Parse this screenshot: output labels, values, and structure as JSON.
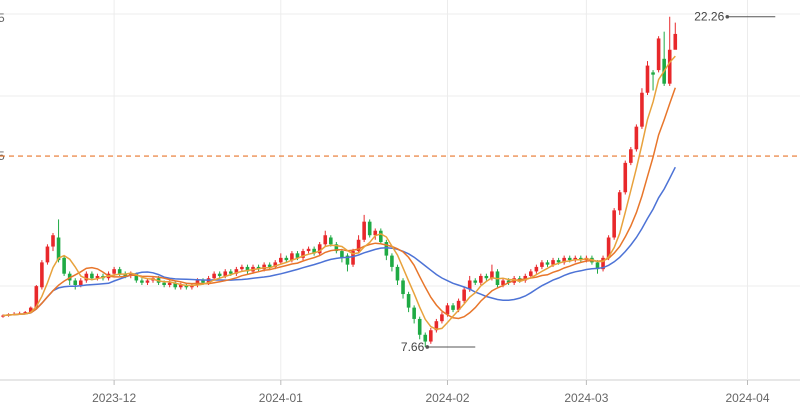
{
  "chart_data": {
    "type": "candlestick",
    "x_tick_labels": [
      "2023-12",
      "2024-01",
      "2024-02",
      "2024-03",
      "2024-04"
    ],
    "x_tick_index": [
      20,
      50,
      80,
      105,
      134
    ],
    "y_left_labels": [
      "5",
      "5"
    ],
    "y_left_label_values": [
      22.2,
      16.1
    ],
    "ylim": [
      6.2,
      23.0
    ],
    "grid": "vertical and horizontal",
    "reference_line": {
      "value": 16.1,
      "color": "#e8762b",
      "style": "dashed"
    },
    "annotations": [
      {
        "text": "22.26",
        "index": 139,
        "value": 22.26,
        "side": "left"
      },
      {
        "text": "7.66",
        "index": 85,
        "value": 7.66,
        "side": "left"
      }
    ],
    "colors": {
      "up": "#e8282b",
      "down": "#1faa44",
      "ma5": "#e8a23c",
      "ma10": "#e8762b",
      "ma20": "#4d73d6"
    },
    "candles": [
      [
        9.0,
        9.05,
        9.1,
        8.95
      ],
      [
        9.05,
        9.1,
        9.15,
        9.0
      ],
      [
        9.1,
        9.12,
        9.2,
        9.05
      ],
      [
        9.12,
        9.15,
        9.22,
        9.08
      ],
      [
        9.15,
        9.2,
        9.25,
        9.1
      ],
      [
        9.2,
        9.4,
        9.45,
        9.15
      ],
      [
        9.4,
        10.35,
        10.4,
        9.35
      ],
      [
        10.3,
        11.4,
        11.5,
        10.2
      ],
      [
        11.4,
        12.1,
        12.2,
        11.3
      ],
      [
        12.1,
        12.6,
        12.7,
        11.9
      ],
      [
        12.5,
        11.5,
        13.3,
        11.4
      ],
      [
        11.6,
        10.9,
        11.7,
        10.8
      ],
      [
        10.9,
        10.6,
        11.0,
        10.4
      ],
      [
        10.6,
        10.4,
        10.7,
        10.2
      ],
      [
        10.4,
        10.6,
        10.7,
        10.3
      ],
      [
        10.6,
        10.9,
        11.0,
        10.5
      ],
      [
        10.9,
        10.7,
        11.0,
        10.6
      ],
      [
        10.7,
        10.8,
        10.9,
        10.6
      ],
      [
        10.8,
        10.7,
        10.9,
        10.6
      ],
      [
        10.7,
        10.9,
        11.0,
        10.6
      ],
      [
        10.9,
        11.1,
        11.2,
        10.8
      ],
      [
        11.1,
        10.9,
        11.2,
        10.8
      ],
      [
        10.9,
        10.8,
        11.0,
        10.7
      ],
      [
        10.8,
        10.9,
        11.0,
        10.7
      ],
      [
        10.9,
        10.6,
        10.95,
        10.5
      ],
      [
        10.6,
        10.5,
        10.7,
        10.4
      ],
      [
        10.5,
        10.6,
        10.7,
        10.4
      ],
      [
        10.6,
        10.7,
        10.8,
        10.5
      ],
      [
        10.7,
        10.5,
        10.8,
        10.4
      ],
      [
        10.5,
        10.4,
        10.6,
        10.3
      ],
      [
        10.4,
        10.5,
        10.6,
        10.3
      ],
      [
        10.5,
        10.3,
        10.6,
        10.2
      ],
      [
        10.3,
        10.4,
        10.5,
        10.2
      ],
      [
        10.4,
        10.3,
        10.5,
        10.2
      ],
      [
        10.3,
        10.4,
        10.45,
        10.2
      ],
      [
        10.4,
        10.6,
        10.7,
        10.3
      ],
      [
        10.6,
        10.5,
        10.7,
        10.4
      ],
      [
        10.5,
        10.7,
        10.8,
        10.4
      ],
      [
        10.7,
        10.9,
        11.0,
        10.6
      ],
      [
        10.9,
        10.8,
        11.0,
        10.7
      ],
      [
        10.8,
        11.0,
        11.1,
        10.7
      ],
      [
        11.0,
        10.9,
        11.1,
        10.8
      ],
      [
        10.9,
        11.1,
        11.2,
        10.8
      ],
      [
        11.1,
        11.2,
        11.3,
        11.0
      ],
      [
        11.2,
        11.0,
        11.3,
        10.9
      ],
      [
        11.0,
        11.2,
        11.3,
        10.9
      ],
      [
        11.2,
        11.1,
        11.3,
        11.0
      ],
      [
        11.1,
        11.3,
        11.4,
        11.0
      ],
      [
        11.3,
        11.2,
        11.4,
        11.1
      ],
      [
        11.2,
        11.4,
        11.5,
        11.1
      ],
      [
        11.4,
        11.6,
        11.8,
        11.3
      ],
      [
        11.6,
        11.5,
        11.7,
        11.4
      ],
      [
        11.5,
        11.8,
        11.9,
        11.4
      ],
      [
        11.8,
        11.6,
        11.9,
        11.5
      ],
      [
        11.6,
        11.9,
        12.0,
        11.5
      ],
      [
        11.9,
        12.0,
        12.1,
        11.8
      ],
      [
        12.0,
        11.8,
        12.1,
        11.7
      ],
      [
        11.8,
        12.2,
        12.3,
        11.7
      ],
      [
        12.2,
        12.6,
        12.8,
        12.1
      ],
      [
        12.5,
        12.2,
        12.6,
        12.1
      ],
      [
        12.2,
        11.9,
        12.3,
        11.8
      ],
      [
        11.9,
        11.6,
        12.0,
        11.4
      ],
      [
        11.7,
        11.3,
        11.8,
        11.0
      ],
      [
        11.3,
        11.9,
        12.0,
        11.2
      ],
      [
        11.9,
        12.4,
        12.6,
        11.8
      ],
      [
        12.4,
        13.2,
        13.5,
        12.3
      ],
      [
        13.2,
        12.6,
        13.3,
        12.5
      ],
      [
        12.6,
        12.8,
        12.9,
        12.4
      ],
      [
        12.8,
        12.3,
        12.9,
        12.2
      ],
      [
        12.3,
        11.7,
        12.4,
        11.5
      ],
      [
        11.7,
        11.2,
        11.8,
        11.0
      ],
      [
        11.2,
        10.6,
        11.3,
        10.4
      ],
      [
        10.6,
        10.0,
        10.7,
        9.8
      ],
      [
        10.0,
        9.4,
        10.1,
        9.2
      ],
      [
        9.4,
        8.9,
        9.5,
        8.7
      ],
      [
        8.9,
        8.2,
        9.0,
        8.0
      ],
      [
        8.2,
        7.9,
        8.3,
        7.66
      ],
      [
        7.9,
        8.4,
        8.5,
        7.8
      ],
      [
        8.4,
        8.8,
        8.9,
        8.3
      ],
      [
        8.8,
        9.1,
        9.2,
        8.7
      ],
      [
        9.1,
        9.5,
        9.6,
        9.0
      ],
      [
        9.5,
        9.3,
        9.6,
        9.2
      ],
      [
        9.3,
        9.7,
        9.8,
        9.2
      ],
      [
        9.7,
        10.2,
        10.3,
        9.6
      ],
      [
        10.2,
        10.6,
        10.8,
        10.1
      ],
      [
        10.6,
        10.5,
        10.7,
        10.4
      ],
      [
        10.5,
        10.8,
        10.9,
        10.4
      ],
      [
        10.8,
        10.7,
        10.9,
        10.6
      ],
      [
        10.7,
        11.0,
        11.3,
        10.6
      ],
      [
        11.0,
        10.4,
        11.1,
        10.3
      ],
      [
        10.4,
        10.6,
        10.7,
        10.3
      ],
      [
        10.6,
        10.5,
        10.7,
        10.4
      ],
      [
        10.5,
        10.7,
        10.8,
        10.4
      ],
      [
        10.7,
        10.6,
        10.8,
        10.5
      ],
      [
        10.6,
        10.8,
        10.9,
        10.5
      ],
      [
        10.8,
        11.0,
        11.1,
        10.7
      ],
      [
        11.0,
        11.2,
        11.3,
        10.9
      ],
      [
        11.2,
        11.4,
        11.5,
        11.1
      ],
      [
        11.4,
        11.3,
        11.5,
        11.2
      ],
      [
        11.3,
        11.5,
        11.6,
        11.2
      ],
      [
        11.5,
        11.4,
        11.6,
        11.3
      ],
      [
        11.4,
        11.6,
        11.7,
        11.3
      ],
      [
        11.6,
        11.5,
        11.7,
        11.4
      ],
      [
        11.5,
        11.6,
        11.7,
        11.4
      ],
      [
        11.6,
        11.5,
        11.7,
        11.4
      ],
      [
        11.5,
        11.6,
        11.7,
        11.4
      ],
      [
        11.6,
        11.4,
        11.7,
        11.3
      ],
      [
        11.4,
        11.1,
        11.5,
        10.9
      ],
      [
        11.1,
        11.6,
        11.7,
        11.0
      ],
      [
        11.6,
        12.5,
        12.6,
        11.5
      ],
      [
        12.5,
        13.7,
        13.8,
        12.4
      ],
      [
        13.7,
        14.5,
        14.6,
        13.5
      ],
      [
        14.5,
        15.8,
        15.9,
        14.4
      ],
      [
        15.8,
        16.4,
        16.5,
        15.7
      ],
      [
        16.4,
        17.4,
        17.5,
        16.3
      ],
      [
        17.4,
        18.9,
        19.1,
        17.3
      ],
      [
        18.9,
        20.1,
        20.3,
        18.8
      ],
      [
        19.8,
        19.7,
        19.9,
        19.0
      ],
      [
        19.9,
        21.3,
        21.4,
        19.8
      ],
      [
        20.4,
        19.3,
        21.6,
        19.2
      ],
      [
        19.3,
        20.8,
        22.26,
        19.2
      ],
      [
        20.8,
        21.5,
        22.0,
        21.2
      ]
    ]
  }
}
